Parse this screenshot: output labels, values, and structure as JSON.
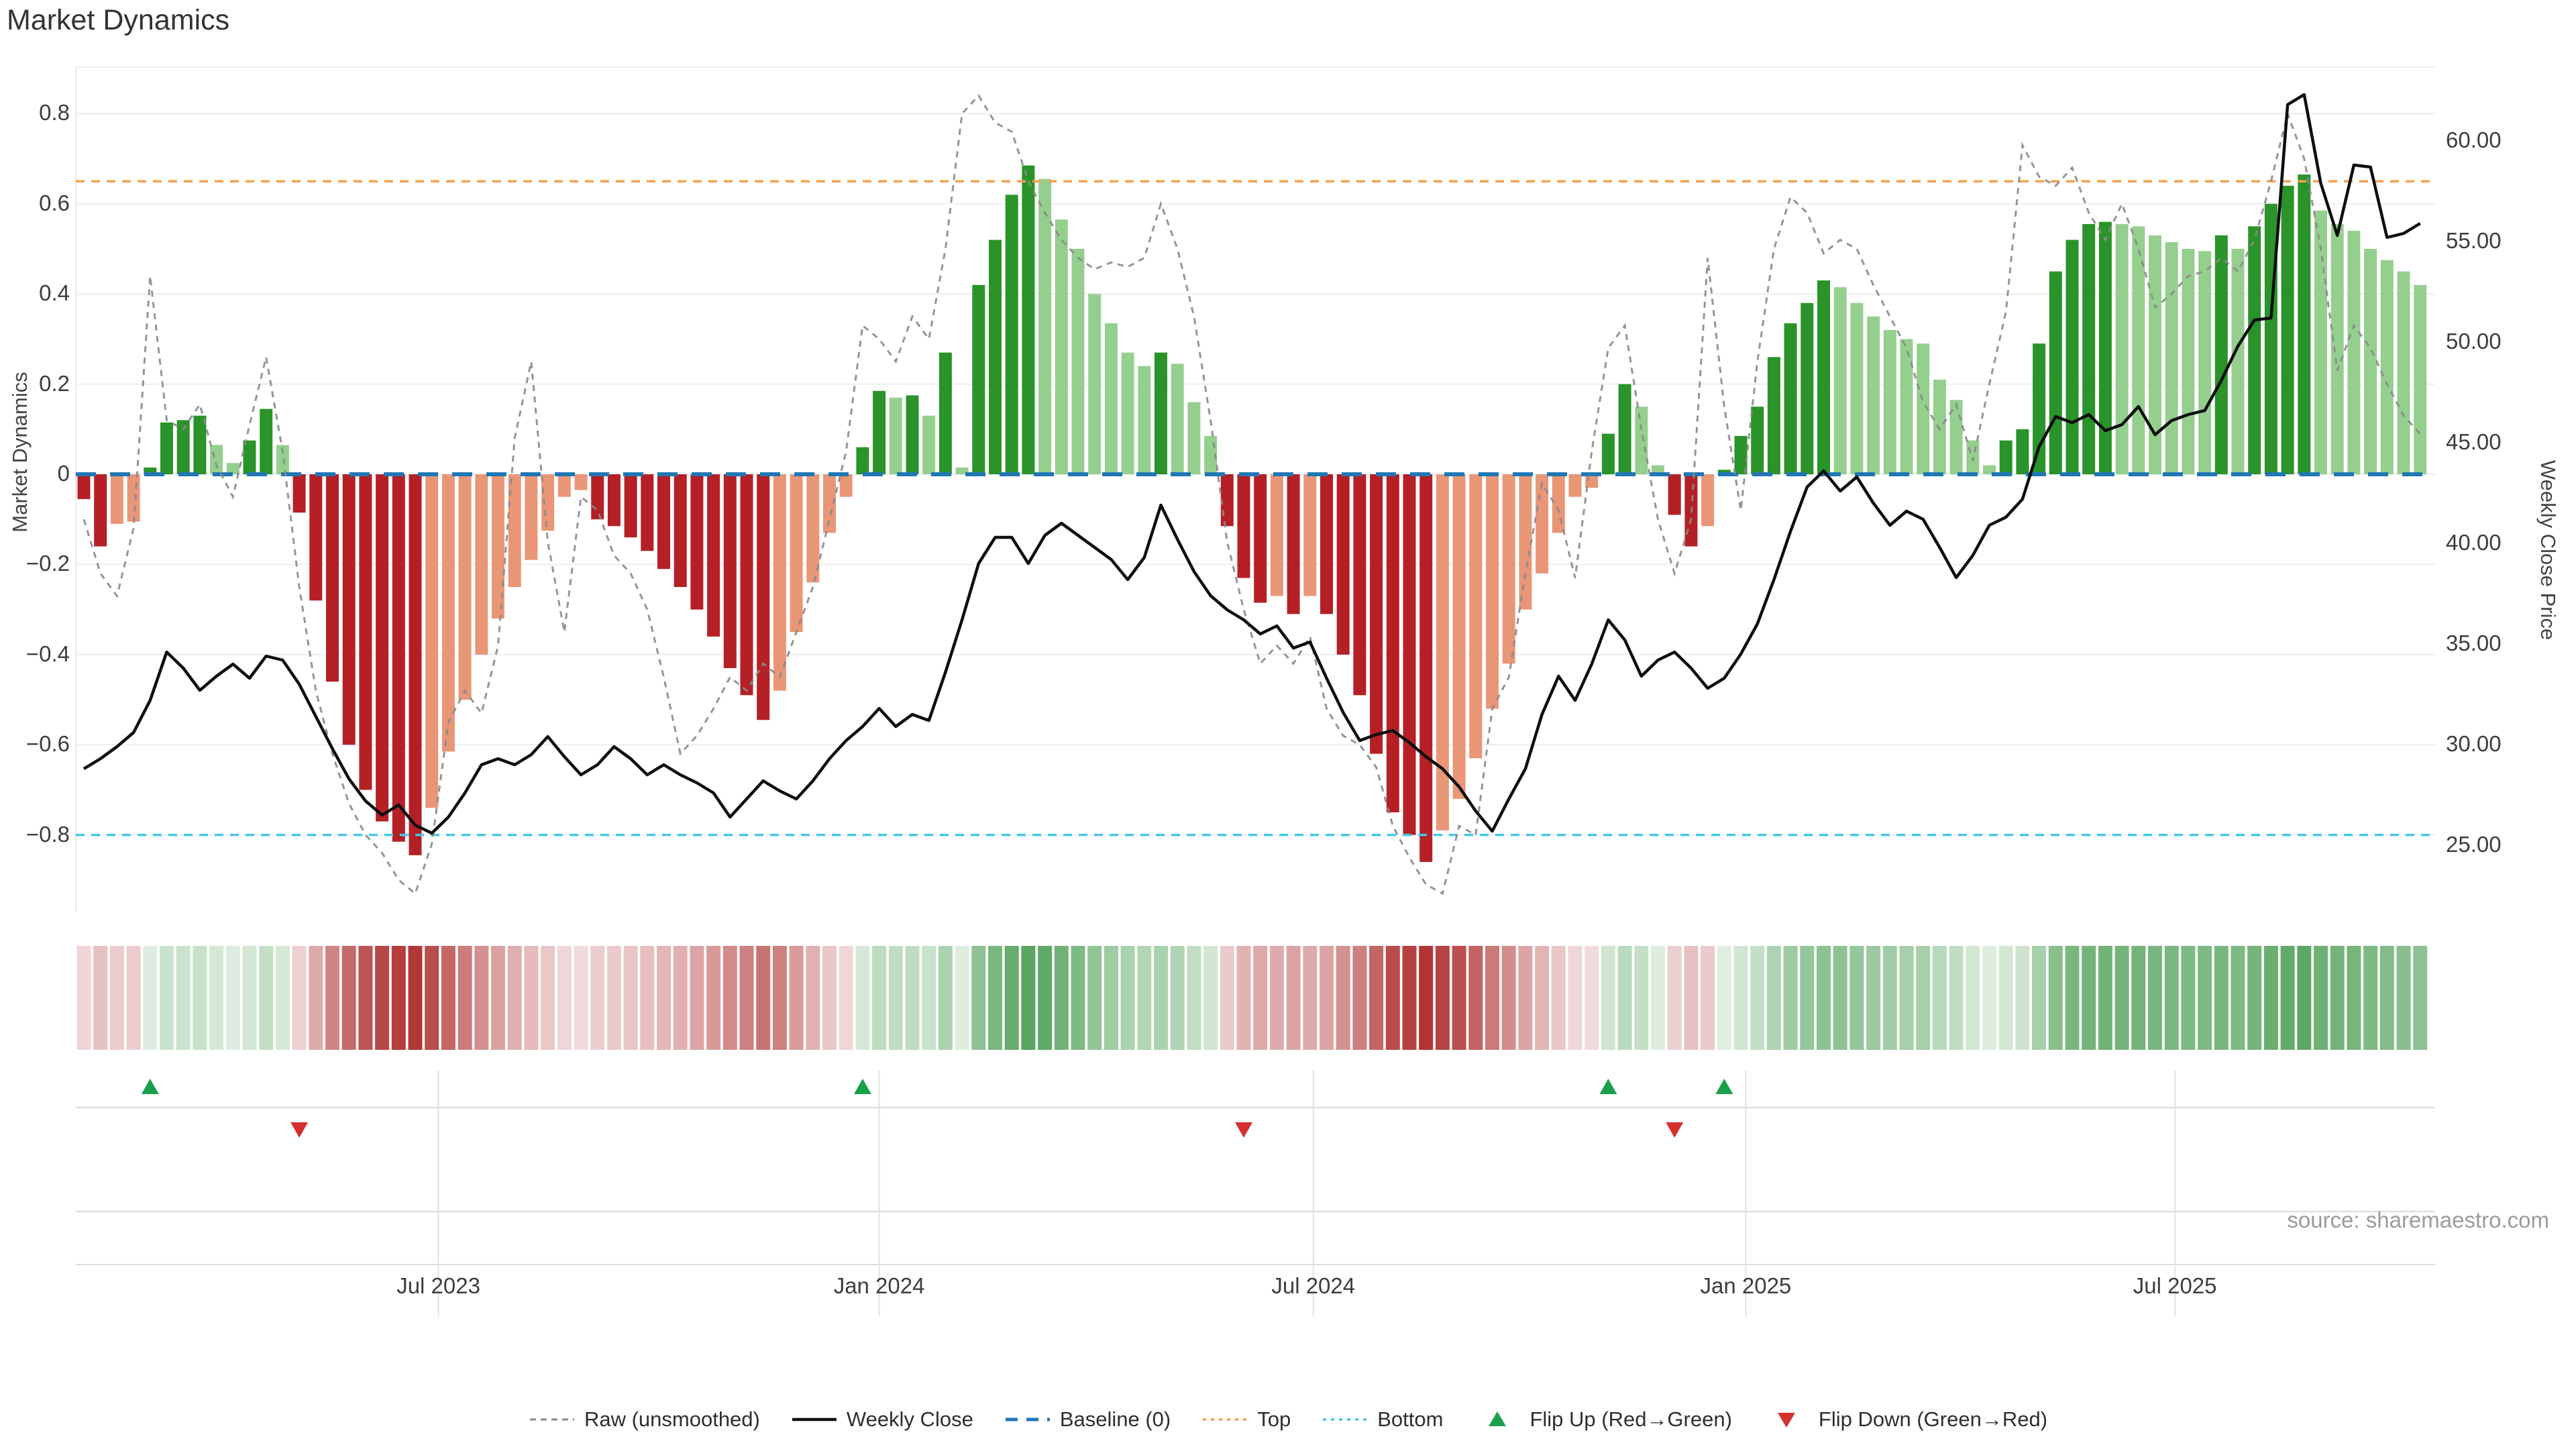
{
  "title": "Market Dynamics",
  "source": "source: sharemaestro.com",
  "axes": {
    "left_title": "Market Dynamics",
    "right_title": "Weekly Close Price",
    "left_ticks": [
      "0.8",
      "0.6",
      "0.4",
      "0.2",
      "0",
      "−0.2",
      "−0.4",
      "−0.6",
      "−0.8"
    ],
    "left_tick_values": [
      0.8,
      0.6,
      0.4,
      0.2,
      0,
      -0.2,
      -0.4,
      -0.6,
      -0.8
    ],
    "right_ticks": [
      "60.00",
      "55.00",
      "50.00",
      "45.00",
      "40.00",
      "35.00",
      "30.00",
      "25.00"
    ],
    "right_tick_values": [
      60,
      55,
      50,
      45,
      40,
      35,
      30,
      25
    ],
    "x_ticks": [
      "Jul 2023",
      "Jan 2024",
      "Jul 2024",
      "Jan 2025",
      "Jul 2025"
    ],
    "x_tick_indices": [
      21.4,
      48.0,
      74.2,
      100.3,
      126.2
    ]
  },
  "chart_data": {
    "type": "bar+line",
    "title": "Market Dynamics",
    "ylabel_left": "Market Dynamics",
    "ylabel_right": "Weekly Close Price",
    "ylim_left": [
      -0.97,
      0.925
    ],
    "ylim_right": [
      21.7,
      64.2
    ],
    "baseline": 0,
    "top_level": 0.65,
    "bottom_level": -0.8,
    "x_frequency": "weekly",
    "series": {
      "dynamics_smoothed": [
        -0.055,
        -0.16,
        -0.11,
        -0.105,
        0.015,
        0.115,
        0.12,
        0.13,
        0.065,
        0.025,
        0.075,
        0.145,
        0.065,
        -0.085,
        -0.28,
        -0.46,
        -0.6,
        -0.7,
        -0.77,
        -0.815,
        -0.845,
        -0.74,
        -0.615,
        -0.5,
        -0.4,
        -0.32,
        -0.25,
        -0.19,
        -0.125,
        -0.05,
        -0.035,
        -0.1,
        -0.115,
        -0.14,
        -0.17,
        -0.21,
        -0.25,
        -0.3,
        -0.36,
        -0.43,
        -0.49,
        -0.545,
        -0.48,
        -0.35,
        -0.24,
        -0.13,
        -0.05,
        0.06,
        0.185,
        0.17,
        0.175,
        0.13,
        0.27,
        0.015,
        0.42,
        0.52,
        0.62,
        0.685,
        0.655,
        0.565,
        0.5,
        0.4,
        0.335,
        0.27,
        0.24,
        0.27,
        0.245,
        0.16,
        0.085,
        -0.115,
        -0.23,
        -0.285,
        -0.27,
        -0.31,
        -0.27,
        -0.31,
        -0.4,
        -0.49,
        -0.62,
        -0.75,
        -0.8,
        -0.86,
        -0.79,
        -0.72,
        -0.63,
        -0.52,
        -0.42,
        -0.3,
        -0.22,
        -0.13,
        -0.05,
        -0.03,
        0.09,
        0.2,
        0.15,
        0.02,
        -0.09,
        -0.16,
        -0.115,
        0.01,
        0.085,
        0.15,
        0.26,
        0.335,
        0.38,
        0.43,
        0.415,
        0.38,
        0.35,
        0.32,
        0.3,
        0.29,
        0.21,
        0.165,
        0.075,
        0.02,
        0.075,
        0.1,
        0.29,
        0.45,
        0.52,
        0.555,
        0.56,
        0.555,
        0.55,
        0.53,
        0.515,
        0.5,
        0.495,
        0.53,
        0.5,
        0.55,
        0.6,
        0.64,
        0.665,
        0.585,
        0.555,
        0.54,
        0.5,
        0.475,
        0.45,
        0.42
      ],
      "raw_unsmoothed": [
        -0.1,
        -0.22,
        -0.27,
        -0.12,
        0.44,
        0.12,
        0.1,
        0.155,
        0.02,
        -0.05,
        0.11,
        0.26,
        0.05,
        -0.25,
        -0.48,
        -0.62,
        -0.73,
        -0.8,
        -0.84,
        -0.9,
        -0.93,
        -0.82,
        -0.55,
        -0.48,
        -0.53,
        -0.38,
        0.08,
        0.25,
        -0.15,
        -0.35,
        -0.05,
        -0.08,
        -0.18,
        -0.22,
        -0.3,
        -0.45,
        -0.62,
        -0.58,
        -0.52,
        -0.45,
        -0.48,
        -0.42,
        -0.45,
        -0.35,
        -0.25,
        -0.1,
        0.05,
        0.33,
        0.3,
        0.25,
        0.35,
        0.3,
        0.5,
        0.8,
        0.84,
        0.78,
        0.76,
        0.65,
        0.58,
        0.52,
        0.48,
        0.455,
        0.47,
        0.46,
        0.48,
        0.6,
        0.5,
        0.35,
        0.12,
        -0.15,
        -0.3,
        -0.42,
        -0.38,
        -0.42,
        -0.36,
        -0.52,
        -0.58,
        -0.6,
        -0.65,
        -0.78,
        -0.85,
        -0.91,
        -0.93,
        -0.78,
        -0.8,
        -0.52,
        -0.45,
        -0.22,
        -0.02,
        -0.08,
        -0.23,
        0.05,
        0.28,
        0.33,
        0.1,
        -0.1,
        -0.22,
        -0.1,
        0.48,
        0.15,
        -0.08,
        0.25,
        0.5,
        0.615,
        0.58,
        0.49,
        0.52,
        0.5,
        0.42,
        0.35,
        0.28,
        0.16,
        0.1,
        0.155,
        0.03,
        0.2,
        0.36,
        0.73,
        0.66,
        0.64,
        0.68,
        0.58,
        0.52,
        0.6,
        0.5,
        0.37,
        0.4,
        0.44,
        0.45,
        0.48,
        0.45,
        0.52,
        0.65,
        0.8,
        0.7,
        0.5,
        0.23,
        0.33,
        0.28,
        0.2,
        0.13,
        0.09
      ],
      "weekly_close": [
        28.8,
        29.3,
        29.9,
        30.6,
        32.2,
        34.6,
        33.8,
        32.7,
        33.4,
        34.0,
        33.3,
        34.4,
        34.2,
        33.0,
        31.4,
        29.8,
        28.3,
        27.2,
        26.5,
        27.0,
        26.0,
        25.6,
        26.4,
        27.6,
        29.0,
        29.3,
        29.0,
        29.5,
        30.4,
        29.4,
        28.5,
        29.0,
        29.9,
        29.3,
        28.5,
        29.0,
        28.5,
        28.1,
        27.6,
        26.4,
        27.3,
        28.2,
        27.7,
        27.3,
        28.2,
        29.3,
        30.2,
        30.9,
        31.8,
        30.9,
        31.5,
        31.2,
        33.6,
        36.2,
        39.0,
        40.3,
        40.3,
        39.0,
        40.4,
        41.0,
        40.4,
        39.8,
        39.2,
        38.2,
        39.3,
        41.9,
        40.2,
        38.6,
        37.4,
        36.7,
        36.2,
        35.5,
        35.9,
        34.8,
        35.1,
        33.3,
        31.6,
        30.2,
        30.5,
        30.7,
        30.1,
        29.4,
        28.8,
        27.9,
        26.7,
        25.7,
        27.3,
        28.8,
        31.5,
        33.4,
        32.2,
        34.0,
        36.2,
        35.2,
        33.4,
        34.2,
        34.6,
        33.8,
        32.8,
        33.3,
        34.5,
        36.0,
        38.2,
        40.6,
        42.8,
        43.6,
        42.6,
        43.3,
        42.0,
        40.9,
        41.6,
        41.2,
        39.8,
        38.3,
        39.4,
        40.9,
        41.3,
        42.2,
        44.8,
        46.3,
        46.0,
        46.4,
        45.6,
        45.9,
        46.8,
        45.4,
        46.1,
        46.4,
        46.6,
        48.1,
        49.8,
        51.1,
        51.2,
        61.8,
        62.3,
        57.9,
        55.3,
        58.8,
        58.7,
        55.2,
        55.4,
        55.9
      ]
    },
    "flip_up_indices": [
      4,
      47,
      92,
      99
    ],
    "flip_down_indices": [
      13,
      70,
      96
    ],
    "legend_position": "bottom-center",
    "grid": "horizontal"
  },
  "legend": {
    "items": [
      {
        "label": "Raw (unsmoothed)",
        "swatch": "dash-gray"
      },
      {
        "label": "Weekly Close",
        "swatch": "solid-black"
      },
      {
        "label": "Baseline (0)",
        "swatch": "dash-blue"
      },
      {
        "label": "Top",
        "swatch": "dot-orange"
      },
      {
        "label": "Bottom",
        "swatch": "dot-cyan"
      },
      {
        "label": "Flip Up (Red→Green)",
        "swatch": "tri-up"
      },
      {
        "label": "Flip Down (Green→Red)",
        "swatch": "tri-down"
      }
    ]
  },
  "colors": {
    "bar_dark_green": "#2a9329",
    "bar_light_green": "#95cf8e",
    "bar_dark_red": "#b42025",
    "bar_salmon": "#e99677",
    "baseline_blue": "#2077b4",
    "top_orange": "#f5a04c",
    "bottom_cyan": "#44c8e6",
    "raw_gray": "#898989",
    "close_black": "#0e0e0e",
    "flip_up_green": "#1aa04b",
    "flip_down_red": "#d62f2f",
    "grid": "#eceef4",
    "lower_grid": "#dcdcdc"
  }
}
